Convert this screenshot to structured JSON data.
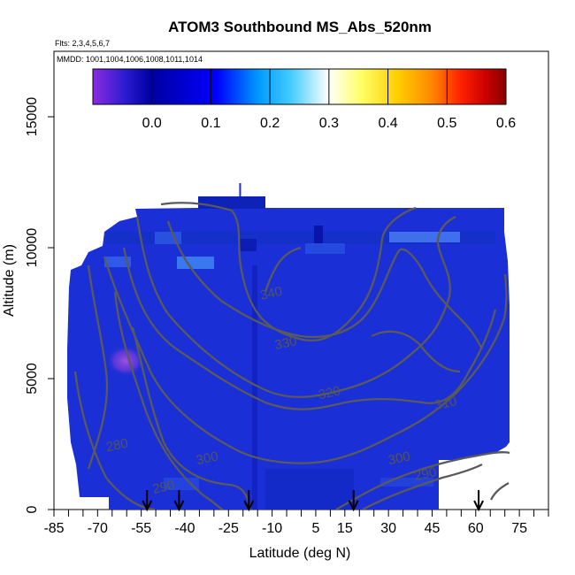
{
  "chart_data": {
    "type": "heatmap",
    "title": "ATOM3 Southbound MS_Abs_520nm",
    "flights_label": "Flts: 2,3,4,5,6,7",
    "dates_label": "MMDD: 1001,1004,1006,1008,1011,1014",
    "xlabel": "Latitude (deg N)",
    "ylabel": "Altitude (m)",
    "xlim": [
      -85,
      85
    ],
    "ylim": [
      0,
      17500
    ],
    "x_ticks": [
      -85,
      -70,
      -55,
      -40,
      -25,
      -10,
      5,
      15,
      30,
      45,
      60,
      75
    ],
    "x_minor_ticks": [
      -80,
      -75,
      -65,
      -60,
      -50,
      -45,
      -35,
      -30,
      -20,
      -15,
      -5,
      0,
      10,
      20,
      25,
      35,
      40,
      50,
      55,
      65,
      70,
      80,
      85
    ],
    "y_ticks": [
      0,
      5000,
      10000,
      15000
    ],
    "colorbar": {
      "ticks": [
        0.0,
        0.1,
        0.2,
        0.3,
        0.4,
        0.5,
        0.6
      ],
      "tick_labels": [
        "0.0",
        "0.1",
        "0.2",
        "0.3",
        "0.4",
        "0.5",
        "0.6"
      ],
      "range": [
        -0.1,
        0.6
      ],
      "colors": [
        "#8a2be2",
        "#0000a0",
        "#0000ff",
        "#0099ff",
        "#22ccff",
        "#ffffff",
        "#ffff66",
        "#ffcc00",
        "#ff8800",
        "#ff2200",
        "#cc0000",
        "#880000"
      ]
    },
    "field_value_typical": 0.0,
    "field_colors": {
      "base": "#1a2fd6",
      "deep": "#0a14b0",
      "light": "#3a78f0",
      "purple": "#8040d0"
    },
    "contours": [
      {
        "label": "280",
        "label_at": [
          -63,
          2300
        ]
      },
      {
        "label": "290",
        "label_at": [
          -47,
          700
        ]
      },
      {
        "label": "300",
        "label_at": [
          -32,
          1800
        ]
      },
      {
        "label": "310",
        "label_at": [
          50,
          3900
        ]
      },
      {
        "label": "320",
        "label_at": [
          10,
          4300
        ]
      },
      {
        "label": "330",
        "label_at": [
          -5,
          6200
        ]
      },
      {
        "label": "340",
        "label_at": [
          -10,
          8100
        ]
      },
      {
        "label": "300",
        "label_at": [
          34,
          1800
        ]
      },
      {
        "label": "290",
        "label_at": [
          43,
          1200
        ]
      }
    ],
    "profile_markers_lat": [
      -53,
      -42,
      -18,
      18,
      61
    ],
    "top_marker_lat": -21
  }
}
